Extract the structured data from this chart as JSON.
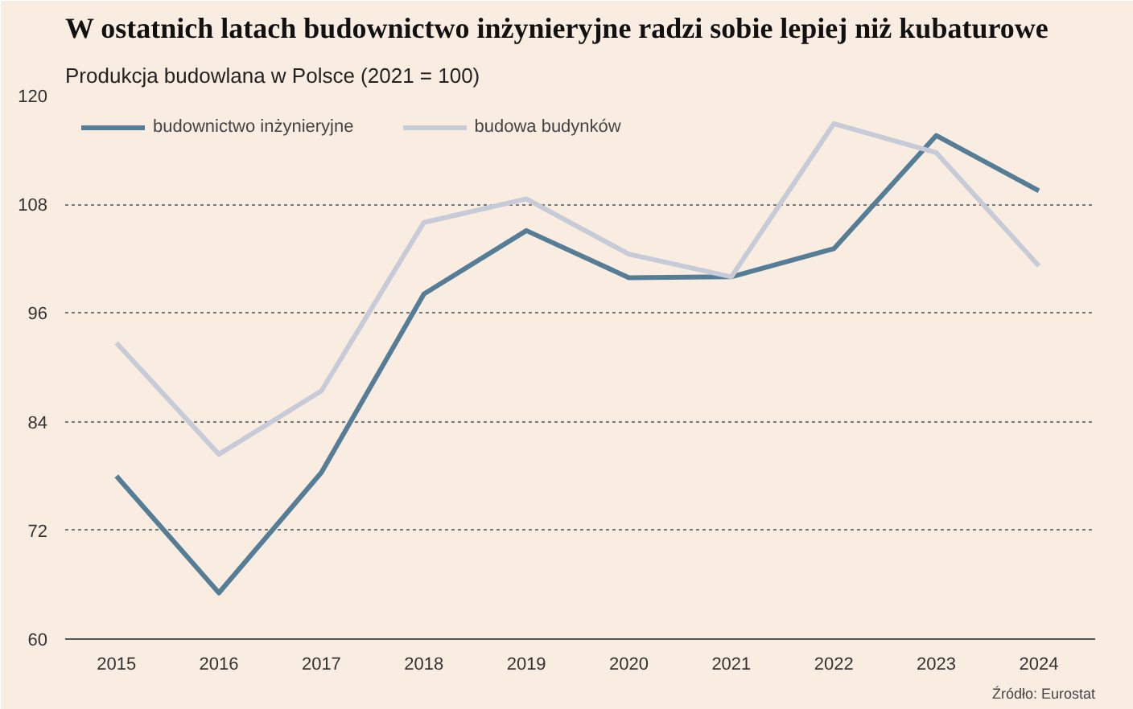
{
  "chart_data": {
    "type": "line",
    "title": "W ostatnich latach budownictwo inżynieryjne radzi sobie lepiej niż kubaturowe",
    "subtitle": "Produkcja budowlana w Polsce (2021 = 100)",
    "categories": [
      "2015",
      "2016",
      "2017",
      "2018",
      "2019",
      "2020",
      "2021",
      "2022",
      "2023",
      "2024"
    ],
    "series": [
      {
        "name": "budownictwo inżynieryjne",
        "color": "#557d96",
        "values": [
          78.0,
          65.1,
          78.4,
          98.1,
          105.1,
          99.9,
          100,
          103.1,
          115.6,
          109.5
        ]
      },
      {
        "name": "budowa budynków",
        "color": "#c6cbd7",
        "values": [
          92.7,
          80.4,
          87.4,
          106.0,
          108.6,
          102.5,
          100,
          116.9,
          113.7,
          101.2
        ]
      }
    ],
    "ylim": [
      60,
      120
    ],
    "yticks": [
      60,
      72,
      84,
      96,
      108,
      120
    ],
    "grid": "y",
    "legend": "top left",
    "annotations": [
      "Źródło: Eurostat"
    ]
  }
}
